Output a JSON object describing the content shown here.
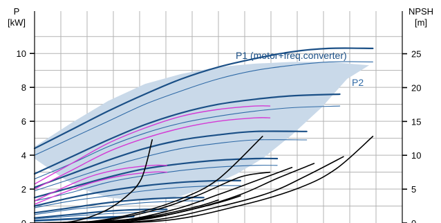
{
  "chart_data": {
    "type": "line",
    "left_axis": {
      "title": "P",
      "unit": "[kW]",
      "ticks": [
        "0",
        "2",
        "4",
        "6",
        "8",
        "10"
      ],
      "range": [
        0,
        12.5
      ]
    },
    "right_axis": {
      "title": "NPSH",
      "unit": "[m]",
      "ticks": [
        "0",
        "5",
        "10",
        "15",
        "20",
        "25"
      ],
      "range": [
        0,
        31.3
      ]
    },
    "x_range": [
      0,
      100
    ],
    "grid": true,
    "legend": "inline",
    "colors": {
      "p1": "#1a4f86",
      "p2": "#2f6aa6",
      "envelope": "#c9d9e9",
      "highlight": "#d43ad4",
      "npsh": "#000000",
      "grid": "#b3b3b3"
    },
    "envelope": [
      [
        0,
        4.5
      ],
      [
        5,
        5.2
      ],
      [
        10,
        5.9
      ],
      [
        20,
        7.2
      ],
      [
        30,
        8.2
      ],
      [
        40,
        8.8
      ],
      [
        50,
        9.2
      ],
      [
        60,
        9.4
      ],
      [
        70,
        9.5
      ],
      [
        80,
        9.5
      ],
      [
        91,
        9.3
      ],
      [
        85,
        8.5
      ],
      [
        78,
        6.8
      ],
      [
        70,
        5.2
      ],
      [
        62,
        3.8
      ],
      [
        55,
        2.9
      ],
      [
        48,
        2.2
      ],
      [
        40,
        1.6
      ],
      [
        30,
        1.3
      ],
      [
        20,
        1.5
      ],
      [
        13,
        2.0
      ],
      [
        8,
        2.6
      ],
      [
        4,
        3.2
      ],
      [
        0,
        3.8
      ]
    ],
    "series": [
      {
        "name": "P1 (motor+freq.converter)",
        "type": "p1",
        "points": [
          [
            0,
            4.4
          ],
          [
            10,
            5.5
          ],
          [
            20,
            6.6
          ],
          [
            30,
            7.6
          ],
          [
            40,
            8.5
          ],
          [
            50,
            9.2
          ],
          [
            60,
            9.7
          ],
          [
            70,
            10.1
          ],
          [
            80,
            10.3
          ],
          [
            92,
            10.3
          ]
        ]
      },
      {
        "name": "P2",
        "type": "p2",
        "points": [
          [
            0,
            4.0
          ],
          [
            10,
            5.0
          ],
          [
            20,
            6.0
          ],
          [
            30,
            7.0
          ],
          [
            40,
            7.8
          ],
          [
            50,
            8.5
          ],
          [
            60,
            9.0
          ],
          [
            70,
            9.3
          ],
          [
            80,
            9.5
          ],
          [
            92,
            9.5
          ]
        ]
      },
      {
        "type": "p1",
        "points": [
          [
            0,
            2.9
          ],
          [
            10,
            3.9
          ],
          [
            20,
            4.9
          ],
          [
            30,
            5.8
          ],
          [
            40,
            6.5
          ],
          [
            50,
            7.0
          ],
          [
            60,
            7.3
          ],
          [
            70,
            7.5
          ],
          [
            83,
            7.6
          ]
        ]
      },
      {
        "type": "p2",
        "points": [
          [
            0,
            2.6
          ],
          [
            10,
            3.5
          ],
          [
            20,
            4.5
          ],
          [
            30,
            5.3
          ],
          [
            40,
            5.9
          ],
          [
            50,
            6.3
          ],
          [
            60,
            6.6
          ],
          [
            70,
            6.8
          ],
          [
            83,
            6.9
          ]
        ]
      },
      {
        "type": "p1",
        "points": [
          [
            0,
            2.1
          ],
          [
            10,
            2.9
          ],
          [
            20,
            3.7
          ],
          [
            30,
            4.4
          ],
          [
            40,
            4.9
          ],
          [
            50,
            5.2
          ],
          [
            60,
            5.4
          ],
          [
            74,
            5.4
          ]
        ]
      },
      {
        "type": "p2",
        "points": [
          [
            0,
            1.9
          ],
          [
            10,
            2.6
          ],
          [
            20,
            3.3
          ],
          [
            30,
            3.9
          ],
          [
            40,
            4.4
          ],
          [
            50,
            4.7
          ],
          [
            60,
            4.9
          ],
          [
            74,
            4.9
          ]
        ]
      },
      {
        "type": "p1",
        "points": [
          [
            0,
            1.5
          ],
          [
            10,
            2.1
          ],
          [
            20,
            2.7
          ],
          [
            30,
            3.2
          ],
          [
            40,
            3.5
          ],
          [
            50,
            3.7
          ],
          [
            60,
            3.8
          ],
          [
            66,
            3.8
          ]
        ]
      },
      {
        "type": "p2",
        "points": [
          [
            0,
            1.3
          ],
          [
            10,
            1.8
          ],
          [
            20,
            2.4
          ],
          [
            30,
            2.8
          ],
          [
            40,
            3.1
          ],
          [
            50,
            3.3
          ],
          [
            60,
            3.4
          ],
          [
            66,
            3.4
          ]
        ]
      },
      {
        "type": "p1",
        "points": [
          [
            0,
            1.0
          ],
          [
            10,
            1.5
          ],
          [
            20,
            1.9
          ],
          [
            30,
            2.2
          ],
          [
            40,
            2.4
          ],
          [
            50,
            2.5
          ],
          [
            56,
            2.5
          ]
        ]
      },
      {
        "type": "p2",
        "points": [
          [
            0,
            0.9
          ],
          [
            10,
            1.3
          ],
          [
            20,
            1.6
          ],
          [
            30,
            1.9
          ],
          [
            40,
            2.1
          ],
          [
            50,
            2.2
          ],
          [
            56,
            2.2
          ]
        ]
      },
      {
        "type": "p1",
        "points": [
          [
            0,
            0.6
          ],
          [
            10,
            0.9
          ],
          [
            20,
            1.2
          ],
          [
            30,
            1.4
          ],
          [
            40,
            1.5
          ],
          [
            46,
            1.5
          ]
        ]
      },
      {
        "type": "p2",
        "points": [
          [
            0,
            0.5
          ],
          [
            10,
            0.8
          ],
          [
            20,
            1.0
          ],
          [
            30,
            1.2
          ],
          [
            40,
            1.3
          ],
          [
            46,
            1.3
          ]
        ]
      },
      {
        "type": "p1",
        "points": [
          [
            0,
            0.3
          ],
          [
            10,
            0.5
          ],
          [
            20,
            0.7
          ],
          [
            30,
            0.8
          ],
          [
            36,
            0.8
          ]
        ]
      },
      {
        "type": "p2",
        "points": [
          [
            0,
            0.25
          ],
          [
            10,
            0.4
          ],
          [
            20,
            0.55
          ],
          [
            30,
            0.65
          ],
          [
            36,
            0.7
          ]
        ]
      },
      {
        "type": "p1",
        "points": [
          [
            0,
            0.15
          ],
          [
            10,
            0.25
          ],
          [
            20,
            0.35
          ],
          [
            27,
            0.4
          ]
        ]
      },
      {
        "type": "p2",
        "points": [
          [
            0,
            0.1
          ],
          [
            10,
            0.2
          ],
          [
            20,
            0.3
          ],
          [
            27,
            0.35
          ]
        ]
      },
      {
        "type": "highlight",
        "points": [
          [
            0,
            2.3
          ],
          [
            10,
            3.5
          ],
          [
            20,
            4.7
          ],
          [
            30,
            5.6
          ],
          [
            40,
            6.3
          ],
          [
            50,
            6.7
          ],
          [
            60,
            6.9
          ],
          [
            64,
            6.9
          ]
        ]
      },
      {
        "type": "highlight",
        "points": [
          [
            0,
            2.0
          ],
          [
            10,
            3.1
          ],
          [
            20,
            4.2
          ],
          [
            30,
            5.0
          ],
          [
            40,
            5.6
          ],
          [
            50,
            6.0
          ],
          [
            60,
            6.2
          ],
          [
            64,
            6.2
          ]
        ]
      },
      {
        "type": "highlight",
        "points": [
          [
            0,
            1.3
          ],
          [
            8,
            2.1
          ],
          [
            16,
            2.8
          ],
          [
            24,
            3.2
          ],
          [
            32,
            3.4
          ],
          [
            36,
            3.4
          ]
        ]
      },
      {
        "type": "highlight",
        "points": [
          [
            0,
            1.1
          ],
          [
            8,
            1.8
          ],
          [
            16,
            2.4
          ],
          [
            24,
            2.8
          ],
          [
            32,
            3.0
          ],
          [
            36,
            3.0
          ]
        ]
      },
      {
        "type": "npsh",
        "points": [
          [
            0,
            0
          ],
          [
            10,
            0.2
          ],
          [
            18,
            1.5
          ],
          [
            24,
            3.5
          ],
          [
            29,
            6.5
          ],
          [
            32,
            12.3
          ]
        ]
      },
      {
        "type": "npsh",
        "points": [
          [
            0,
            0
          ],
          [
            15,
            0.2
          ],
          [
            28,
            1.5
          ],
          [
            40,
            3.6
          ],
          [
            50,
            6.5
          ],
          [
            62,
            12.8
          ]
        ]
      },
      {
        "type": "npsh",
        "points": [
          [
            0,
            0
          ],
          [
            18,
            0.3
          ],
          [
            32,
            1.8
          ],
          [
            44,
            4.0
          ],
          [
            56,
            6.8
          ],
          [
            64,
            7.5
          ]
        ]
      },
      {
        "type": "npsh",
        "points": [
          [
            0,
            0
          ],
          [
            22,
            0.3
          ],
          [
            38,
            2.0
          ],
          [
            50,
            4.2
          ],
          [
            60,
            6.2
          ],
          [
            70,
            8.2
          ]
        ]
      },
      {
        "type": "npsh",
        "points": [
          [
            0,
            0
          ],
          [
            26,
            0.3
          ],
          [
            44,
            2.2
          ],
          [
            56,
            4.2
          ],
          [
            66,
            6.6
          ],
          [
            76,
            8.8
          ]
        ]
      },
      {
        "type": "npsh",
        "points": [
          [
            0,
            0
          ],
          [
            30,
            0.3
          ],
          [
            50,
            2.4
          ],
          [
            64,
            4.5
          ],
          [
            74,
            7.0
          ],
          [
            84,
            9.8
          ]
        ]
      },
      {
        "type": "npsh",
        "points": [
          [
            0,
            0
          ],
          [
            34,
            0.3
          ],
          [
            56,
            2.6
          ],
          [
            72,
            5.2
          ],
          [
            82,
            8.0
          ],
          [
            92,
            12.8
          ]
        ]
      },
      {
        "type": "npsh",
        "points": [
          [
            0,
            0
          ],
          [
            20,
            0.3
          ],
          [
            32,
            1.0
          ],
          [
            44,
            2.4
          ],
          [
            50,
            3.4
          ]
        ]
      },
      {
        "type": "npsh",
        "points": [
          [
            0,
            0
          ],
          [
            22,
            0.3
          ],
          [
            36,
            1.2
          ],
          [
            50,
            3.0
          ],
          [
            56,
            4.0
          ]
        ]
      }
    ]
  }
}
